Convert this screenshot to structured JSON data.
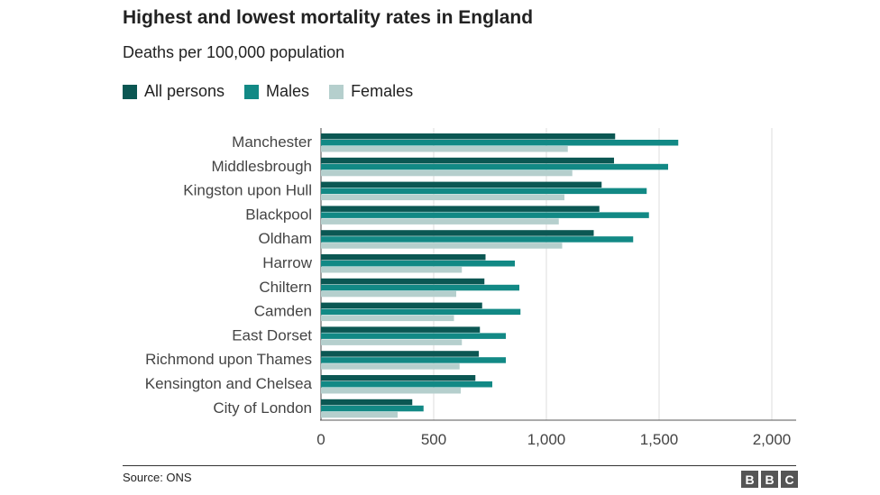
{
  "chart_data": {
    "type": "bar",
    "orientation": "horizontal",
    "title": "Highest and lowest mortality rates in England",
    "subtitle": "Deaths per 100,000 population",
    "categories": [
      "Manchester",
      "Middlesbrough",
      "Kingston upon Hull",
      "Blackpool",
      "Oldham",
      "Harrow",
      "Chiltern",
      "Camden",
      "East Dorset",
      "Richmond upon Thames",
      "Kensington and Chelsea",
      "City of London"
    ],
    "series": [
      {
        "name": "All persons",
        "color": "#0b5753",
        "values": [
          1305,
          1300,
          1245,
          1235,
          1210,
          730,
          725,
          715,
          705,
          700,
          685,
          405
        ]
      },
      {
        "name": "Males",
        "color": "#128985",
        "values": [
          1585,
          1540,
          1445,
          1455,
          1385,
          860,
          880,
          885,
          820,
          820,
          760,
          455
        ]
      },
      {
        "name": "Females",
        "color": "#b5cfcd",
        "values": [
          1095,
          1115,
          1080,
          1055,
          1070,
          625,
          600,
          590,
          625,
          615,
          620,
          340
        ]
      }
    ],
    "xlim": [
      0,
      2000
    ],
    "xticks": [
      0,
      500,
      1000,
      1500,
      2000
    ],
    "xtick_labels": [
      "0",
      "500",
      "1,000",
      "1,500",
      "2,000"
    ],
    "grid": true,
    "legend_position": "top-left"
  },
  "source": "Source: ONS",
  "logo": [
    "B",
    "B",
    "C"
  ]
}
